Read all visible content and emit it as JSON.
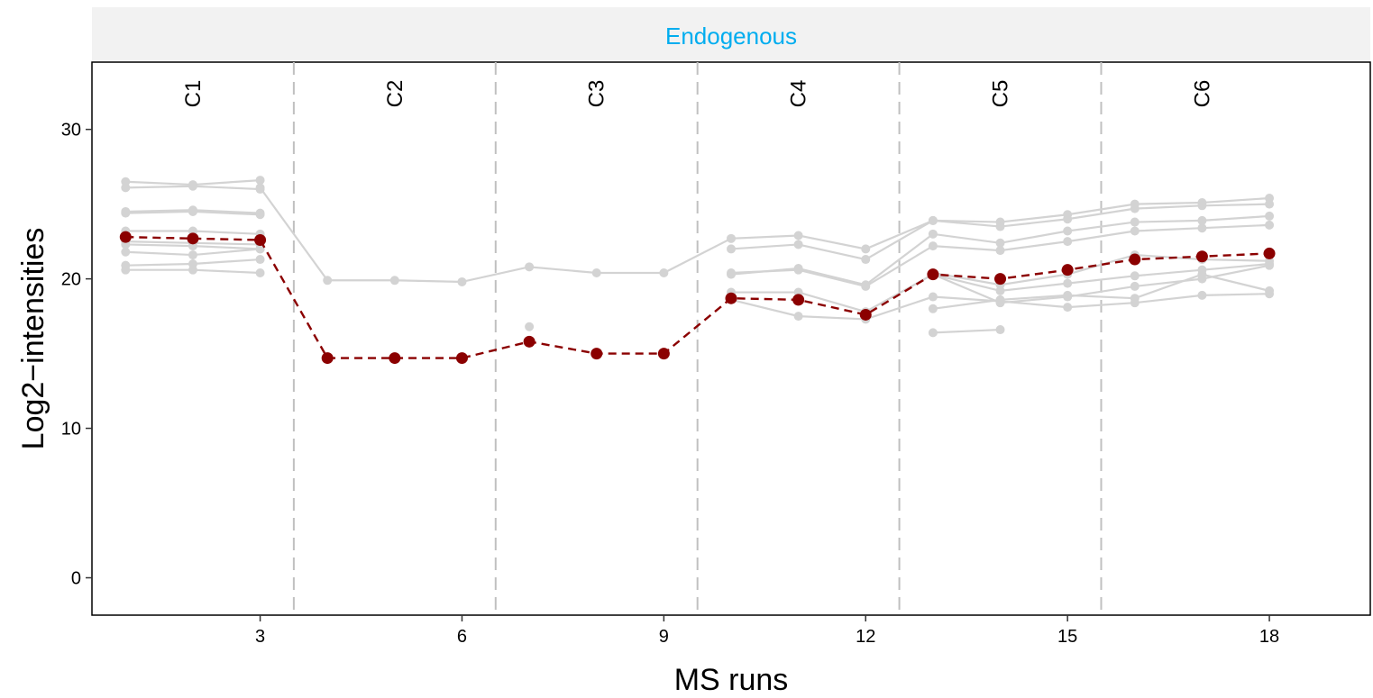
{
  "panel": {
    "title": "Endogenous",
    "title_color": "#00ADEF",
    "strip_color": "#F2F2F2"
  },
  "chart_data": {
    "type": "line",
    "title": "",
    "xlabel": "MS runs",
    "ylabel": "Log2−intensities",
    "xlim": [
      0.5,
      19.5
    ],
    "ylim": [
      -2.5,
      34.5
    ],
    "x_ticks": [
      3,
      6,
      9,
      12,
      15,
      18
    ],
    "y_ticks": [
      0,
      10,
      20,
      30
    ],
    "grid": false,
    "conditions": [
      {
        "label": "C1",
        "x": 2
      },
      {
        "label": "C2",
        "x": 5
      },
      {
        "label": "C3",
        "x": 8
      },
      {
        "label": "C4",
        "x": 11
      },
      {
        "label": "C5",
        "x": 14
      },
      {
        "label": "C6",
        "x": 17
      }
    ],
    "boundaries": [
      3.5,
      6.5,
      9.5,
      12.5,
      15.5
    ],
    "colors": {
      "feature": "#D3D3D3",
      "summary": "#8B0000",
      "boundary": "#C0C0C0"
    },
    "features": [
      [
        [
          1,
          26.5
        ],
        [
          2,
          26.3
        ],
        [
          3,
          26.6
        ]
      ],
      [
        [
          1,
          26.1
        ],
        [
          2,
          26.2
        ],
        [
          3,
          26.0
        ]
      ],
      [
        [
          1,
          24.5
        ],
        [
          2,
          24.6
        ],
        [
          3,
          24.4
        ]
      ],
      [
        [
          1,
          24.4
        ],
        [
          2,
          24.5
        ],
        [
          3,
          24.3
        ]
      ],
      [
        [
          1,
          23.2
        ],
        [
          2,
          23.2
        ],
        [
          3,
          23.0
        ]
      ],
      [
        [
          1,
          22.5
        ],
        [
          2,
          22.4
        ],
        [
          3,
          22.3
        ]
      ],
      [
        [
          1,
          22.3
        ],
        [
          2,
          22.2
        ],
        [
          3,
          22.0
        ]
      ],
      [
        [
          1,
          21.8
        ],
        [
          2,
          21.6
        ],
        [
          3,
          22.0
        ]
      ],
      [
        [
          1,
          20.9
        ],
        [
          2,
          21.0
        ],
        [
          3,
          21.3
        ]
      ],
      [
        [
          1,
          20.6
        ],
        [
          2,
          20.6
        ],
        [
          3,
          20.4
        ]
      ],
      [
        [
          3,
          26.1
        ],
        [
          4,
          19.9
        ],
        [
          5,
          19.9
        ],
        [
          6,
          19.8
        ],
        [
          7,
          20.8
        ],
        [
          8,
          20.4
        ],
        [
          9,
          20.4
        ],
        [
          10,
          22.7
        ],
        [
          11,
          22.9
        ],
        [
          12,
          22.0
        ],
        [
          13,
          23.9
        ],
        [
          14,
          23.8
        ],
        [
          15,
          24.3
        ],
        [
          16,
          25.0
        ],
        [
          17,
          25.1
        ],
        [
          18,
          25.4
        ]
      ],
      [
        [
          7,
          16.8
        ]
      ],
      [
        [
          7,
          15.7
        ]
      ],
      [
        [
          10,
          22.0
        ],
        [
          11,
          22.3
        ],
        [
          12,
          21.3
        ],
        [
          13,
          23.9
        ],
        [
          14,
          23.5
        ],
        [
          15,
          24.0
        ],
        [
          16,
          24.7
        ],
        [
          17,
          24.9
        ],
        [
          18,
          25.0
        ]
      ],
      [
        [
          10,
          20.3
        ],
        [
          11,
          20.7
        ],
        [
          12,
          19.6
        ],
        [
          13,
          23.0
        ],
        [
          14,
          22.4
        ],
        [
          15,
          23.2
        ],
        [
          16,
          23.8
        ],
        [
          17,
          23.9
        ],
        [
          18,
          24.2
        ]
      ],
      [
        [
          10,
          20.4
        ],
        [
          11,
          20.6
        ],
        [
          12,
          19.5
        ],
        [
          13,
          22.2
        ],
        [
          14,
          21.9
        ],
        [
          15,
          22.5
        ],
        [
          16,
          23.2
        ],
        [
          17,
          23.4
        ],
        [
          18,
          23.6
        ]
      ],
      [
        [
          10,
          19.1
        ],
        [
          11,
          19.1
        ],
        [
          12,
          17.8
        ],
        [
          13,
          20.3
        ],
        [
          14,
          18.4
        ],
        [
          15,
          18.8
        ],
        [
          16,
          19.5
        ],
        [
          17,
          20.0
        ],
        [
          18,
          20.9
        ]
      ],
      [
        [
          10,
          18.6
        ],
        [
          11,
          17.5
        ],
        [
          12,
          17.3
        ],
        [
          13,
          18.8
        ],
        [
          14,
          18.5
        ],
        [
          15,
          18.1
        ],
        [
          16,
          18.4
        ],
        [
          17,
          18.9
        ],
        [
          18,
          19.0
        ]
      ],
      [
        [
          13,
          20.4
        ],
        [
          14,
          19.6
        ],
        [
          15,
          20.3
        ],
        [
          16,
          21.6
        ],
        [
          17,
          21.3
        ],
        [
          18,
          21.2
        ]
      ],
      [
        [
          13,
          20.3
        ],
        [
          14,
          19.2
        ],
        [
          15,
          19.7
        ],
        [
          16,
          20.2
        ],
        [
          17,
          20.6
        ],
        [
          18,
          21.0
        ]
      ],
      [
        [
          13,
          18.0
        ],
        [
          14,
          18.6
        ],
        [
          15,
          18.9
        ],
        [
          16,
          18.7
        ],
        [
          17,
          20.3
        ],
        [
          18,
          19.2
        ]
      ],
      [
        [
          13,
          16.4
        ],
        [
          14,
          16.6
        ]
      ]
    ],
    "summary": {
      "name": "",
      "points": [
        [
          1,
          22.8
        ],
        [
          2,
          22.7
        ],
        [
          3,
          22.6
        ],
        [
          4,
          14.7
        ],
        [
          5,
          14.7
        ],
        [
          6,
          14.7
        ],
        [
          7,
          15.8
        ],
        [
          8,
          15.0
        ],
        [
          9,
          15.0
        ],
        [
          10,
          18.7
        ],
        [
          11,
          18.6
        ],
        [
          12,
          17.6
        ],
        [
          13,
          20.3
        ],
        [
          14,
          20.0
        ],
        [
          15,
          20.6
        ],
        [
          16,
          21.3
        ],
        [
          17,
          21.5
        ],
        [
          18,
          21.7
        ]
      ]
    }
  }
}
